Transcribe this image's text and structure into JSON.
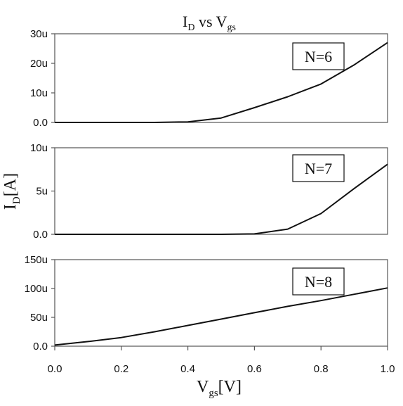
{
  "chart_data": {
    "type": "line",
    "title": {
      "main": "I",
      "main_sub": "D",
      "mid": " vs V",
      "mid_sub": "gs"
    },
    "xlabel": {
      "main": "V",
      "sub": "gs",
      "unit": "[V]"
    },
    "ylabel": {
      "main": "I",
      "sub": "D",
      "unit": "[A]"
    },
    "xlim": [
      0.0,
      1.0
    ],
    "xticks": [
      "0.0",
      "0.2",
      "0.4",
      "0.6",
      "0.8",
      "1.0"
    ],
    "grid": false,
    "panels": [
      {
        "label": "N=6",
        "ylim": [
          0,
          30
        ],
        "yticks": [
          {
            "value": 0,
            "label": "0.0"
          },
          {
            "value": 10,
            "label": "10u"
          },
          {
            "value": 20,
            "label": "20u"
          },
          {
            "value": 30,
            "label": "30u"
          }
        ],
        "series": [
          {
            "x": [
              0.0,
              0.1,
              0.2,
              0.3,
              0.4,
              0.5,
              0.6,
              0.7,
              0.8,
              0.9,
              1.0
            ],
            "y": [
              0,
              0,
              0,
              0,
              0.2,
              1.5,
              5.0,
              8.7,
              13.0,
              19.5,
              27.0
            ]
          }
        ]
      },
      {
        "label": "N=7",
        "ylim": [
          0,
          10
        ],
        "yticks": [
          {
            "value": 0,
            "label": "0.0"
          },
          {
            "value": 5,
            "label": "5u"
          },
          {
            "value": 10,
            "label": "10u"
          }
        ],
        "series": [
          {
            "x": [
              0.0,
              0.1,
              0.2,
              0.3,
              0.4,
              0.5,
              0.6,
              0.7,
              0.8,
              0.9,
              1.0
            ],
            "y": [
              0,
              0,
              0,
              0,
              0,
              0,
              0.05,
              0.6,
              2.4,
              5.3,
              8.1
            ]
          }
        ]
      },
      {
        "label": "N=8",
        "ylim": [
          0,
          150
        ],
        "yticks": [
          {
            "value": 0,
            "label": "0.0"
          },
          {
            "value": 50,
            "label": "50u"
          },
          {
            "value": 100,
            "label": "100u"
          },
          {
            "value": 150,
            "label": "150u"
          }
        ],
        "series": [
          {
            "x": [
              0.0,
              0.1,
              0.2,
              0.3,
              0.4,
              0.5,
              0.6,
              0.7,
              0.8,
              0.9,
              1.0
            ],
            "y": [
              2,
              8,
              15,
              25,
              36,
              47,
              58,
              69,
              79,
              90,
              101
            ]
          }
        ]
      }
    ]
  }
}
